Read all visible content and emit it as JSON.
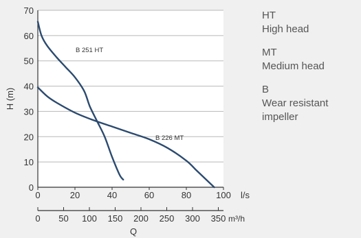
{
  "chart_data": {
    "type": "line",
    "ylabel": "H (m)",
    "xlabel": "Q",
    "ylim": [
      0,
      70
    ],
    "y_ticks": [
      "0",
      "10",
      "20",
      "30",
      "40",
      "50",
      "60",
      "70"
    ],
    "x_primary": {
      "unit": "l/s",
      "xlim": [
        0,
        100
      ],
      "ticks": [
        "0",
        "20",
        "40",
        "60",
        "80",
        "100"
      ]
    },
    "x_secondary": {
      "unit": "m³/h",
      "xlim": [
        0,
        360
      ],
      "ticks": [
        "0",
        "50",
        "100",
        "150",
        "200",
        "250",
        "300",
        "350"
      ]
    },
    "grid": true,
    "series": [
      {
        "name": "B 251 HT",
        "color": "#2b4a6f",
        "x": [
          0,
          2,
          5,
          10,
          15,
          20,
          25,
          28,
          32,
          36,
          40,
          44,
          46
        ],
        "y": [
          65.5,
          60,
          56,
          51.5,
          47.5,
          43.5,
          38,
          32,
          26,
          20,
          12,
          5,
          3
        ]
      },
      {
        "name": "B 226 MT",
        "color": "#2b4a6f",
        "x": [
          0,
          5,
          10,
          20,
          30,
          40,
          50,
          60,
          70,
          80,
          85,
          90,
          95
        ],
        "y": [
          39.5,
          36,
          33.5,
          29.5,
          26.5,
          24,
          21.5,
          19,
          15.5,
          10.5,
          7,
          3.5,
          0
        ]
      }
    ]
  },
  "legend": [
    {
      "code": "HT",
      "desc": "High head"
    },
    {
      "code": "MT",
      "desc": "Medium head"
    },
    {
      "code": "B",
      "desc": "Wear resistant impeller"
    }
  ]
}
